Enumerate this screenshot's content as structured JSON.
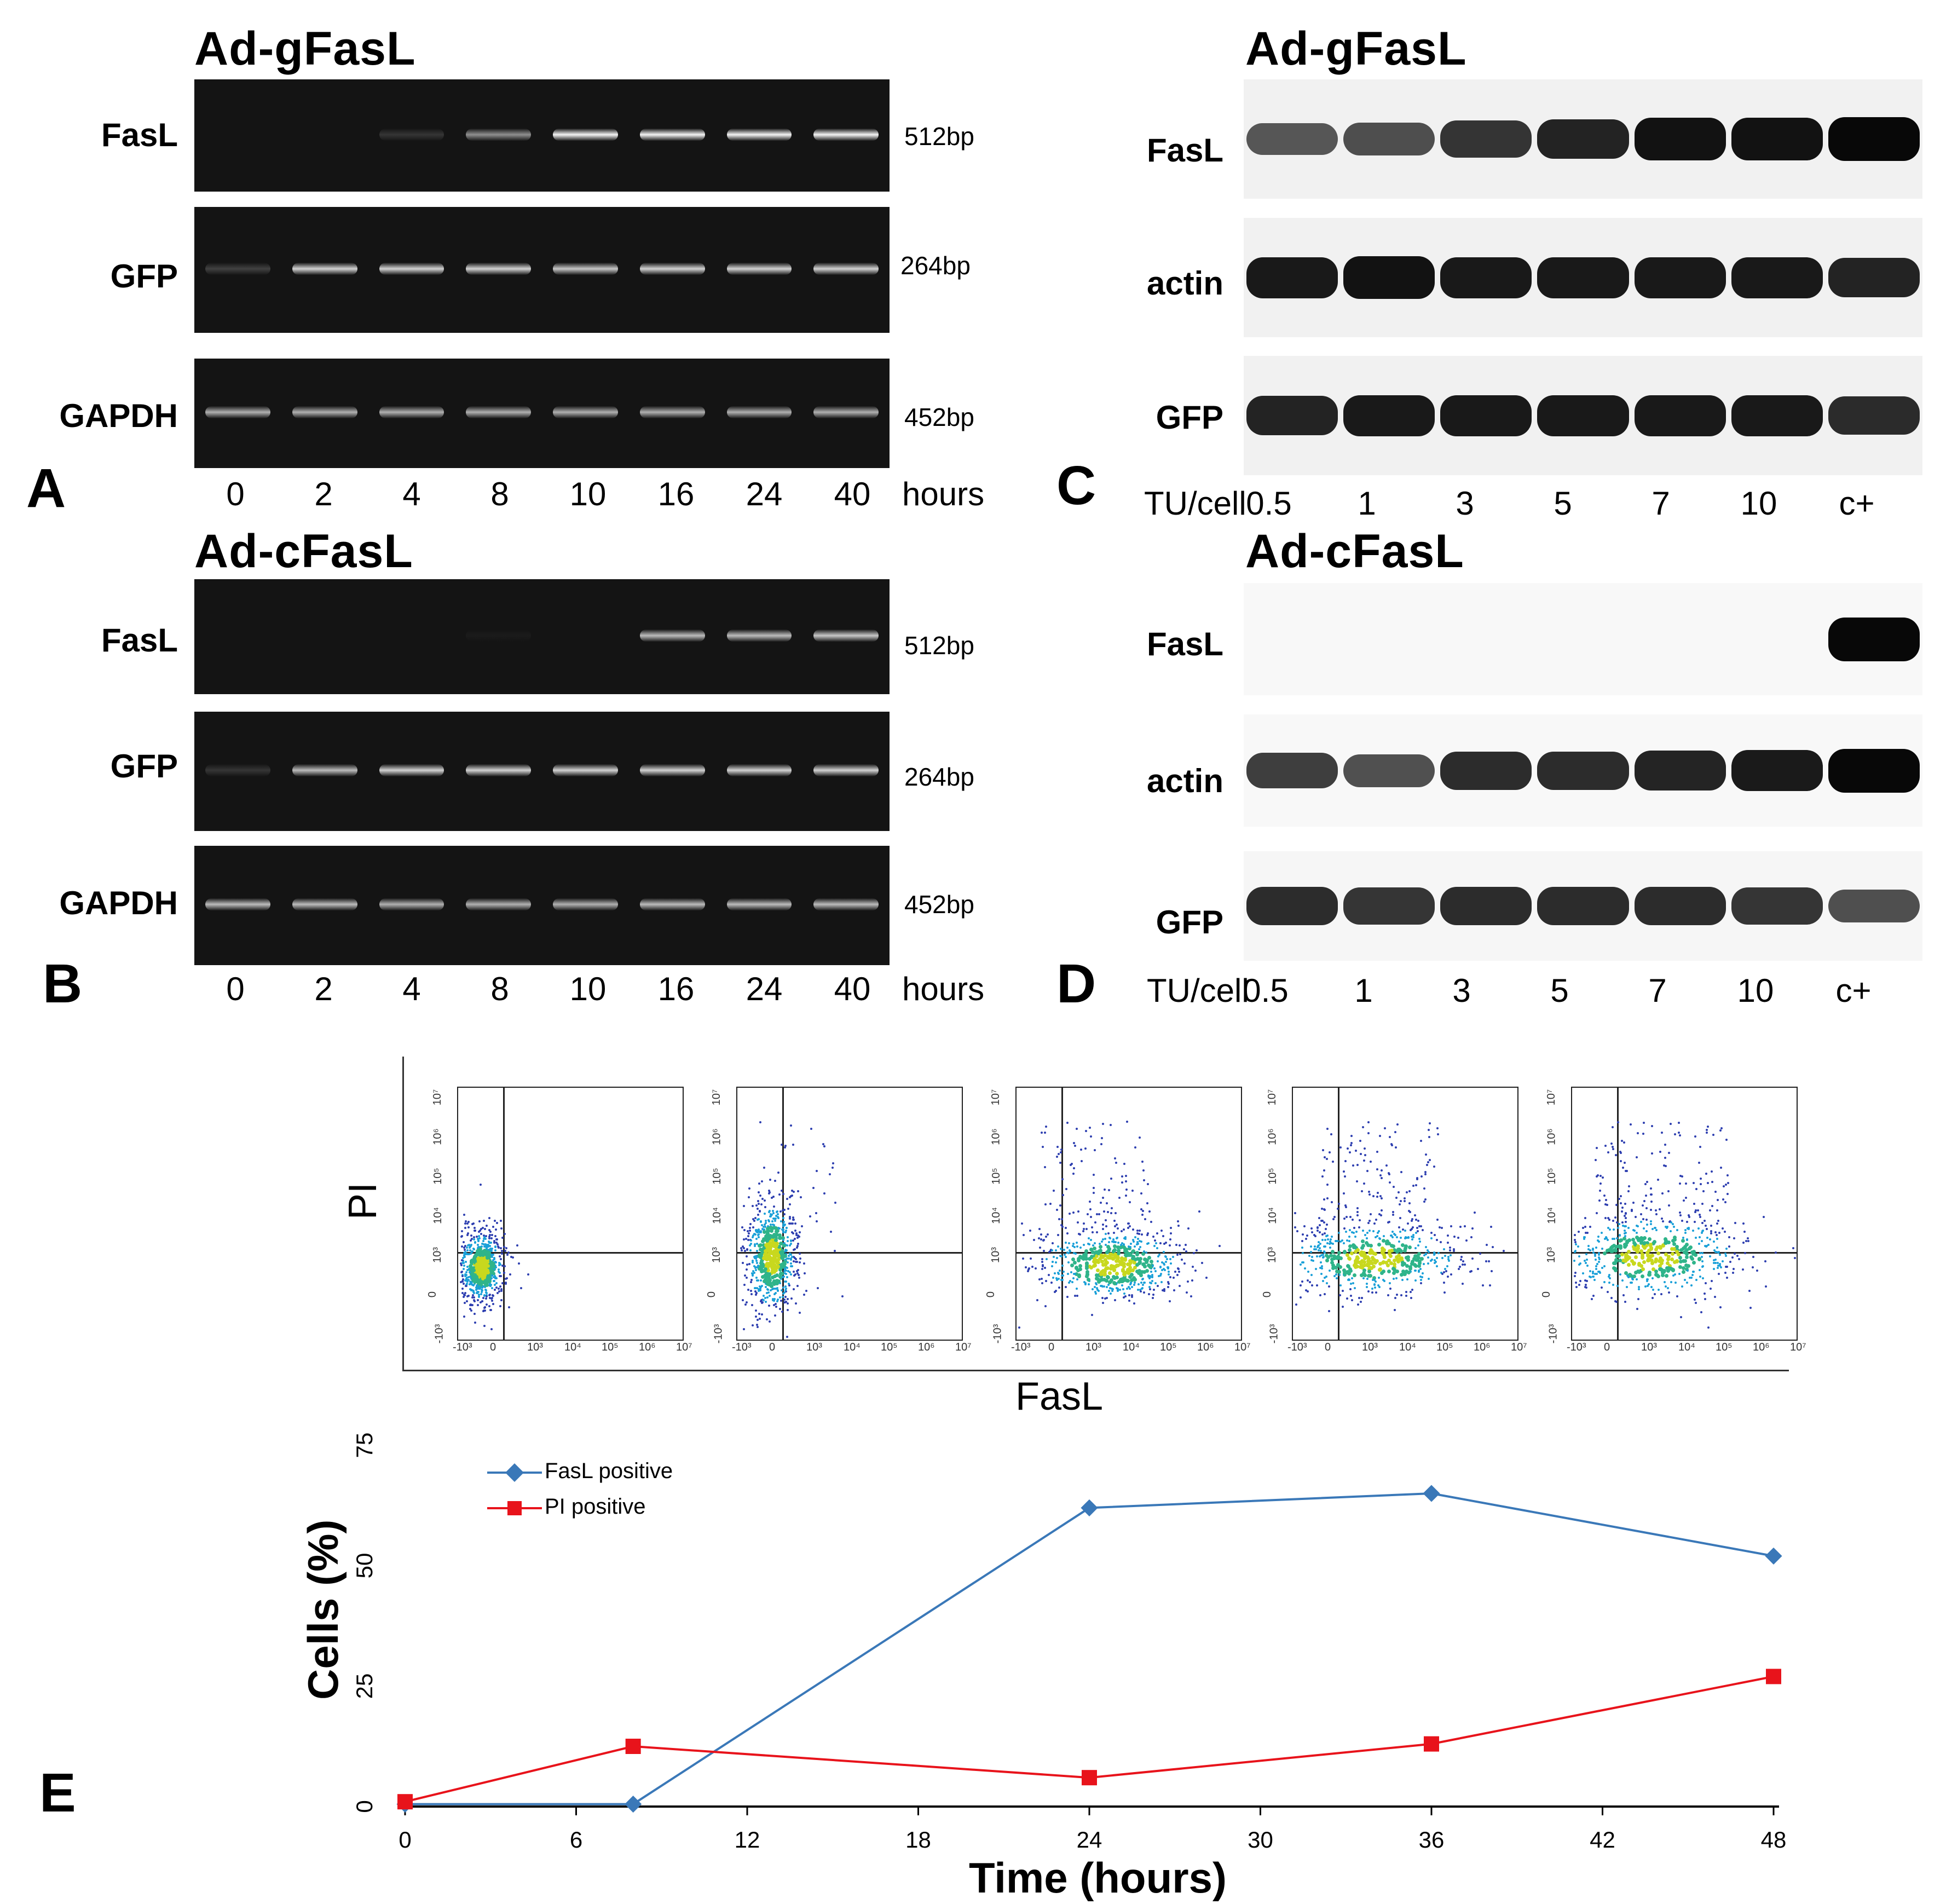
{
  "panelA": {
    "title": "Ad-gFasL",
    "letter": "A",
    "rows": [
      {
        "label": "FasL",
        "bp": "512bp",
        "intensity": [
          0,
          0,
          0.15,
          0.55,
          1,
          1,
          1,
          1
        ]
      },
      {
        "label": "GFP",
        "bp": "264bp",
        "intensity": [
          0.2,
          0.85,
          0.85,
          0.85,
          0.8,
          0.85,
          0.85,
          0.85
        ]
      },
      {
        "label": "GAPDH",
        "bp": "452bp",
        "intensity": [
          0.7,
          0.7,
          0.7,
          0.7,
          0.7,
          0.7,
          0.7,
          0.7
        ]
      }
    ],
    "lanes": [
      "0",
      "2",
      "4",
      "8",
      "10",
      "16",
      "24",
      "40"
    ],
    "unit": "hours"
  },
  "panelB": {
    "title": "Ad-cFasL",
    "letter": "B",
    "rows": [
      {
        "label": "FasL",
        "bp": "512bp",
        "intensity": [
          0,
          0,
          0,
          0.03,
          0,
          0.75,
          0.75,
          0.8
        ]
      },
      {
        "label": "GFP",
        "bp": "264bp",
        "intensity": [
          0.15,
          0.75,
          0.85,
          0.85,
          0.85,
          0.85,
          0.85,
          0.85
        ]
      },
      {
        "label": "GAPDH",
        "bp": "452bp",
        "intensity": [
          0.75,
          0.75,
          0.7,
          0.7,
          0.7,
          0.75,
          0.75,
          0.75
        ]
      }
    ],
    "lanes": [
      "0",
      "2",
      "4",
      "8",
      "10",
      "16",
      "24",
      "40"
    ],
    "unit": "hours"
  },
  "panelC": {
    "title": "Ad-gFasL",
    "letter": "C",
    "rows": [
      {
        "label": "FasL",
        "intensity": [
          0.55,
          0.6,
          0.75,
          0.85,
          0.95,
          0.95,
          1
        ]
      },
      {
        "label": "actin",
        "intensity": [
          0.9,
          0.95,
          0.9,
          0.9,
          0.9,
          0.9,
          0.85
        ]
      },
      {
        "label": "GFP",
        "intensity": [
          0.85,
          0.9,
          0.9,
          0.9,
          0.9,
          0.9,
          0.8
        ]
      }
    ],
    "unit": "TU/cell",
    "lanes": [
      "0.5",
      "1",
      "3",
      "5",
      "7",
      "10",
      "c+"
    ]
  },
  "panelD": {
    "title": "Ad-cFasL",
    "letter": "D",
    "rows": [
      {
        "label": "FasL",
        "intensity": [
          0,
          0,
          0,
          0,
          0,
          0,
          1
        ]
      },
      {
        "label": "actin",
        "intensity": [
          0.7,
          0.6,
          0.8,
          0.8,
          0.85,
          0.9,
          1
        ]
      },
      {
        "label": "GFP",
        "intensity": [
          0.8,
          0.75,
          0.8,
          0.8,
          0.8,
          0.75,
          0.6
        ]
      }
    ],
    "unit": "TU/cell",
    "lanes": [
      "0.5",
      "1",
      "3",
      "5",
      "7",
      "10",
      "c+"
    ]
  },
  "panelE": {
    "letter": "E",
    "flow": {
      "ylabel": "PI",
      "xlabel": "FasL",
      "y_ticks": [
        "-10³",
        "0",
        "10³",
        "10⁴",
        "10⁵",
        "10⁶",
        "10⁷"
      ],
      "x_ticks": [
        "-10³",
        "0",
        "10³",
        "10⁴",
        "10⁵",
        "10⁶",
        "10⁷"
      ]
    },
    "chart_data": {
      "type": "line",
      "title": "",
      "xlabel": "Time (hours)",
      "ylabel": "Cells (%)",
      "x_ticks": [
        0,
        6,
        12,
        18,
        24,
        30,
        36,
        42,
        48
      ],
      "y_ticks": [
        0,
        25,
        50,
        75
      ],
      "xlim": [
        0,
        48
      ],
      "ylim": [
        0,
        75
      ],
      "series": [
        {
          "name": "FasL positive",
          "color": "#3a78b8",
          "marker": "diamond",
          "x": [
            0,
            8,
            24,
            36,
            48
          ],
          "values": [
            0.5,
            0.5,
            62,
            65,
            52
          ]
        },
        {
          "name": "PI positive",
          "color": "#e8131b",
          "marker": "square",
          "x": [
            0,
            8,
            24,
            36,
            48
          ],
          "values": [
            1,
            12.5,
            6,
            13,
            27
          ]
        }
      ]
    }
  }
}
